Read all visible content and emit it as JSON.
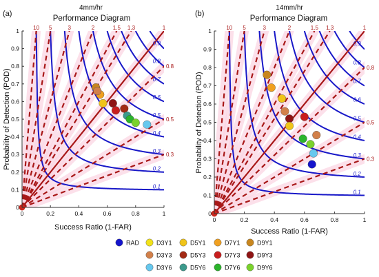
{
  "chart_data": [
    {
      "type": "scatter",
      "panel_label": "(a)",
      "subtitle": "4mm/hr",
      "title": "Performance Diagram",
      "xlabel": "Success Ratio (1-FAR)",
      "ylabel": "Probability of Detection (POD)",
      "xlim": [
        0,
        1
      ],
      "ylim": [
        0,
        1
      ],
      "x_ticks": [
        "0",
        "0.2",
        "0.4",
        "0.6",
        "0.8",
        "1"
      ],
      "y_ticks": [
        "0",
        "0.1",
        "0.2",
        "0.3",
        "0.4",
        "0.5",
        "0.6",
        "0.7",
        "0.8",
        "0.9",
        "1"
      ],
      "bias_top_labels": [
        {
          "value": 10,
          "text": "10"
        },
        {
          "value": 5,
          "text": "5"
        },
        {
          "value": 3,
          "text": "3"
        },
        {
          "value": 2,
          "text": "2"
        },
        {
          "value": 1.5,
          "text": "1.5"
        },
        {
          "value": 1.3,
          "text": "1.3"
        },
        {
          "value": 1,
          "text": "1"
        }
      ],
      "bias_right_labels": [
        {
          "value": 0.8,
          "text": "0.8"
        },
        {
          "value": 0.5,
          "text": "0.5"
        },
        {
          "value": 0.3,
          "text": "0.3"
        }
      ],
      "csi_labels": [
        {
          "value": 0.1,
          "text": "0.1"
        },
        {
          "value": 0.2,
          "text": "0.2"
        },
        {
          "value": 0.3,
          "text": "0.3"
        },
        {
          "value": 0.4,
          "text": "0.4"
        },
        {
          "value": 0.5,
          "text": "0.5"
        },
        {
          "value": 0.6,
          "text": "0.6"
        },
        {
          "value": 0.7,
          "text": "0.7"
        },
        {
          "value": 0.8,
          "text": "0.8"
        },
        {
          "value": 0.9,
          "text": "0.9"
        }
      ],
      "points": [
        {
          "series": "D9Y1",
          "x": 0.52,
          "y": 0.68
        },
        {
          "series": "D7Y1",
          "x": 0.55,
          "y": 0.64
        },
        {
          "series": "D5Y1",
          "x": 0.57,
          "y": 0.59
        },
        {
          "series": "D3Y3",
          "x": 0.53,
          "y": 0.66
        },
        {
          "series": "D9Y3",
          "x": 0.64,
          "y": 0.59
        },
        {
          "series": "D7Y3",
          "x": 0.66,
          "y": 0.55
        },
        {
          "series": "D5Y3",
          "x": 0.72,
          "y": 0.56
        },
        {
          "series": "D3Y6",
          "x": 0.88,
          "y": 0.47
        },
        {
          "series": "D5Y6",
          "x": 0.74,
          "y": 0.52
        },
        {
          "series": "D7Y6",
          "x": 0.76,
          "y": 0.5
        },
        {
          "series": "D9Y6",
          "x": 0.8,
          "y": 0.48
        }
      ]
    },
    {
      "type": "scatter",
      "panel_label": "(b)",
      "subtitle": "14mm/hr",
      "title": "Performance Diagram",
      "xlabel": "Success Ratio (1-FAR)",
      "ylabel": "Probability of Detection (POD)",
      "xlim": [
        0,
        1
      ],
      "ylim": [
        0,
        1
      ],
      "x_ticks": [
        "0",
        "0.2",
        "0.4",
        "0.6",
        "0.8",
        "1"
      ],
      "y_ticks": [
        "0",
        "0.1",
        "0.2",
        "0.3",
        "0.4",
        "0.5",
        "0.6",
        "0.7",
        "0.8",
        "0.9",
        "1"
      ],
      "bias_top_labels": [
        {
          "value": 10,
          "text": "10"
        },
        {
          "value": 5,
          "text": "5"
        },
        {
          "value": 3,
          "text": "3"
        },
        {
          "value": 2,
          "text": "2"
        },
        {
          "value": 1.5,
          "text": "1.5"
        },
        {
          "value": 1.3,
          "text": "1.3"
        },
        {
          "value": 1,
          "text": "1"
        }
      ],
      "bias_right_labels": [
        {
          "value": 0.8,
          "text": "0.8"
        },
        {
          "value": 0.5,
          "text": "0.5"
        },
        {
          "value": 0.3,
          "text": "0.3"
        }
      ],
      "csi_labels": [
        {
          "value": 0.1,
          "text": "0.1"
        },
        {
          "value": 0.2,
          "text": "0.2"
        },
        {
          "value": 0.3,
          "text": "0.3"
        },
        {
          "value": 0.4,
          "text": "0.4"
        },
        {
          "value": 0.5,
          "text": "0.5"
        },
        {
          "value": 0.6,
          "text": "0.6"
        },
        {
          "value": 0.7,
          "text": "0.7"
        },
        {
          "value": 0.8,
          "text": "0.8"
        },
        {
          "value": 0.9,
          "text": "0.9"
        }
      ],
      "points": [
        {
          "series": "D9Y1",
          "x": 0.35,
          "y": 0.76
        },
        {
          "series": "D7Y1",
          "x": 0.38,
          "y": 0.69
        },
        {
          "series": "D5Y1",
          "x": 0.45,
          "y": 0.63
        },
        {
          "series": "D3Y3",
          "x": 0.47,
          "y": 0.56
        },
        {
          "series": "D9Y3",
          "x": 0.5,
          "y": 0.52
        },
        {
          "series": "D7Y3",
          "x": 0.6,
          "y": 0.53
        },
        {
          "series": "D5Y1",
          "x": 0.5,
          "y": 0.48
        },
        {
          "series": "D3Y3",
          "x": 0.68,
          "y": 0.43
        },
        {
          "series": "D7Y6",
          "x": 0.59,
          "y": 0.41
        },
        {
          "series": "D9Y6",
          "x": 0.64,
          "y": 0.38
        },
        {
          "series": "D3Y6",
          "x": 0.66,
          "y": 0.33
        },
        {
          "series": "RAD",
          "x": 0.65,
          "y": 0.27
        }
      ]
    }
  ],
  "legend": {
    "items": [
      {
        "label": "RAD",
        "color": "#1414cc"
      },
      {
        "label": "D3Y1",
        "color": "#f2e21a"
      },
      {
        "label": "D5Y1",
        "color": "#f0c419"
      },
      {
        "label": "D7Y1",
        "color": "#f0a020"
      },
      {
        "label": "D9Y1",
        "color": "#c8861e"
      },
      {
        "label": "D3Y3",
        "color": "#d2804a"
      },
      {
        "label": "D5Y3",
        "color": "#a32a14"
      },
      {
        "label": "D7Y3",
        "color": "#c81e1e"
      },
      {
        "label": "D9Y3",
        "color": "#8e1414"
      },
      {
        "label": "D3Y6",
        "color": "#66c8ee"
      },
      {
        "label": "D5Y6",
        "color": "#3c9a8c"
      },
      {
        "label": "D7Y6",
        "color": "#2cb42c"
      },
      {
        "label": "D9Y6",
        "color": "#7ad22c"
      }
    ]
  },
  "colors": {
    "csi_line": "#1818c8",
    "bias_line": "#a81818",
    "shade": "#fbd6e3",
    "axis": "#333333"
  }
}
